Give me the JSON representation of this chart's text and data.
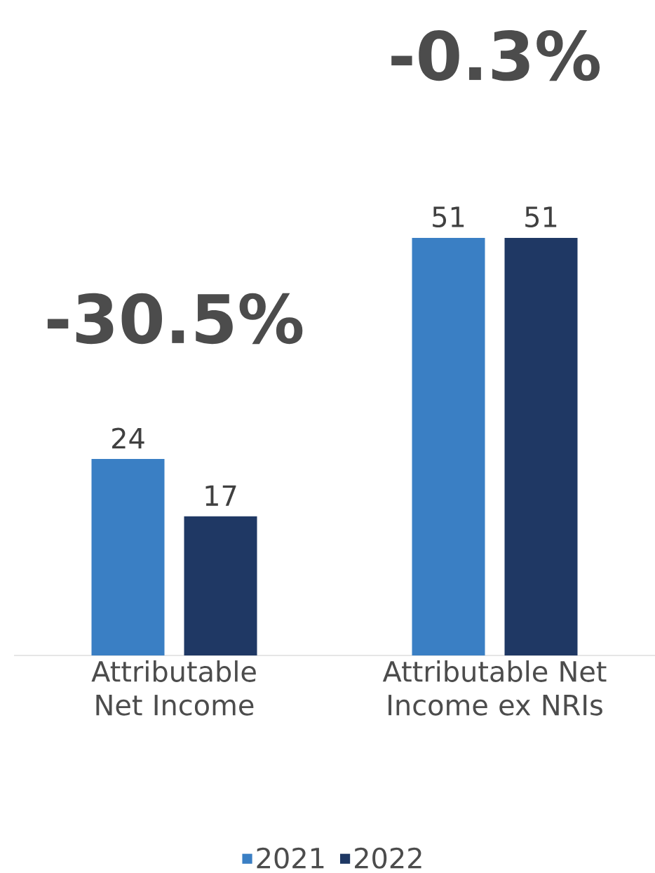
{
  "chart_data": {
    "type": "bar",
    "categories": [
      "Attributable Net Income",
      "Attributable Net Income ex NRIs"
    ],
    "series": [
      {
        "name": "2021",
        "color": "#3a7fc4",
        "values": [
          24,
          51
        ]
      },
      {
        "name": "2022",
        "color": "#1f3864",
        "values": [
          17,
          51
        ]
      }
    ],
    "data_labels": true,
    "legend": "bottom",
    "annotations": [
      "-30.5%",
      "-0.3%"
    ]
  }
}
